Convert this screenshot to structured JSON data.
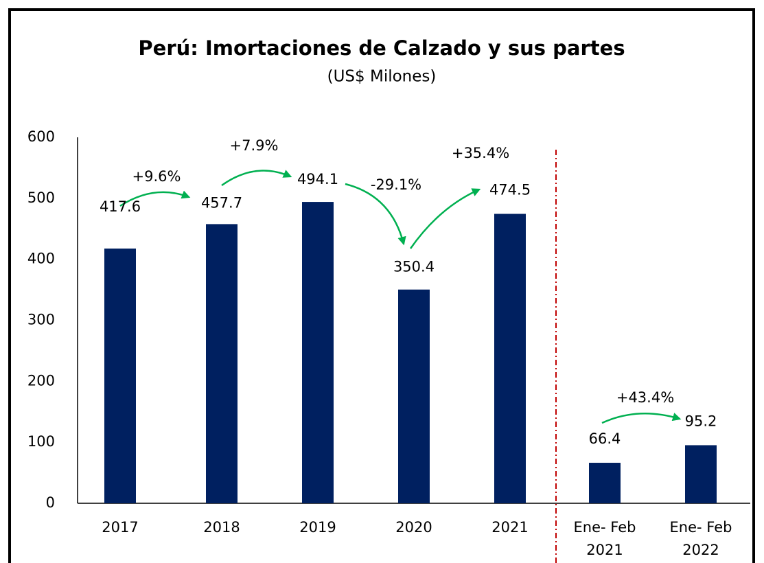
{
  "chart_data": {
    "type": "bar",
    "title": "Perú: Imortaciones de Calzado y sus partes",
    "subtitle": "(US$ Milones)",
    "categories": [
      [
        "2017"
      ],
      [
        "2018"
      ],
      [
        "2019"
      ],
      [
        "2020"
      ],
      [
        "2021"
      ],
      [
        "Ene- Feb",
        "2021"
      ],
      [
        "Ene- Feb",
        "2022"
      ]
    ],
    "values": [
      417.6,
      457.7,
      494.1,
      350.4,
      474.5,
      66.4,
      95.2
    ],
    "color": "#002060",
    "ylim": [
      0,
      600
    ],
    "yticks": [
      0,
      100,
      200,
      300,
      400,
      500,
      600
    ],
    "annotations": [
      "+9.6%",
      "+7.9%",
      "-29.1%",
      "+35.4%",
      "+43.4%"
    ]
  }
}
